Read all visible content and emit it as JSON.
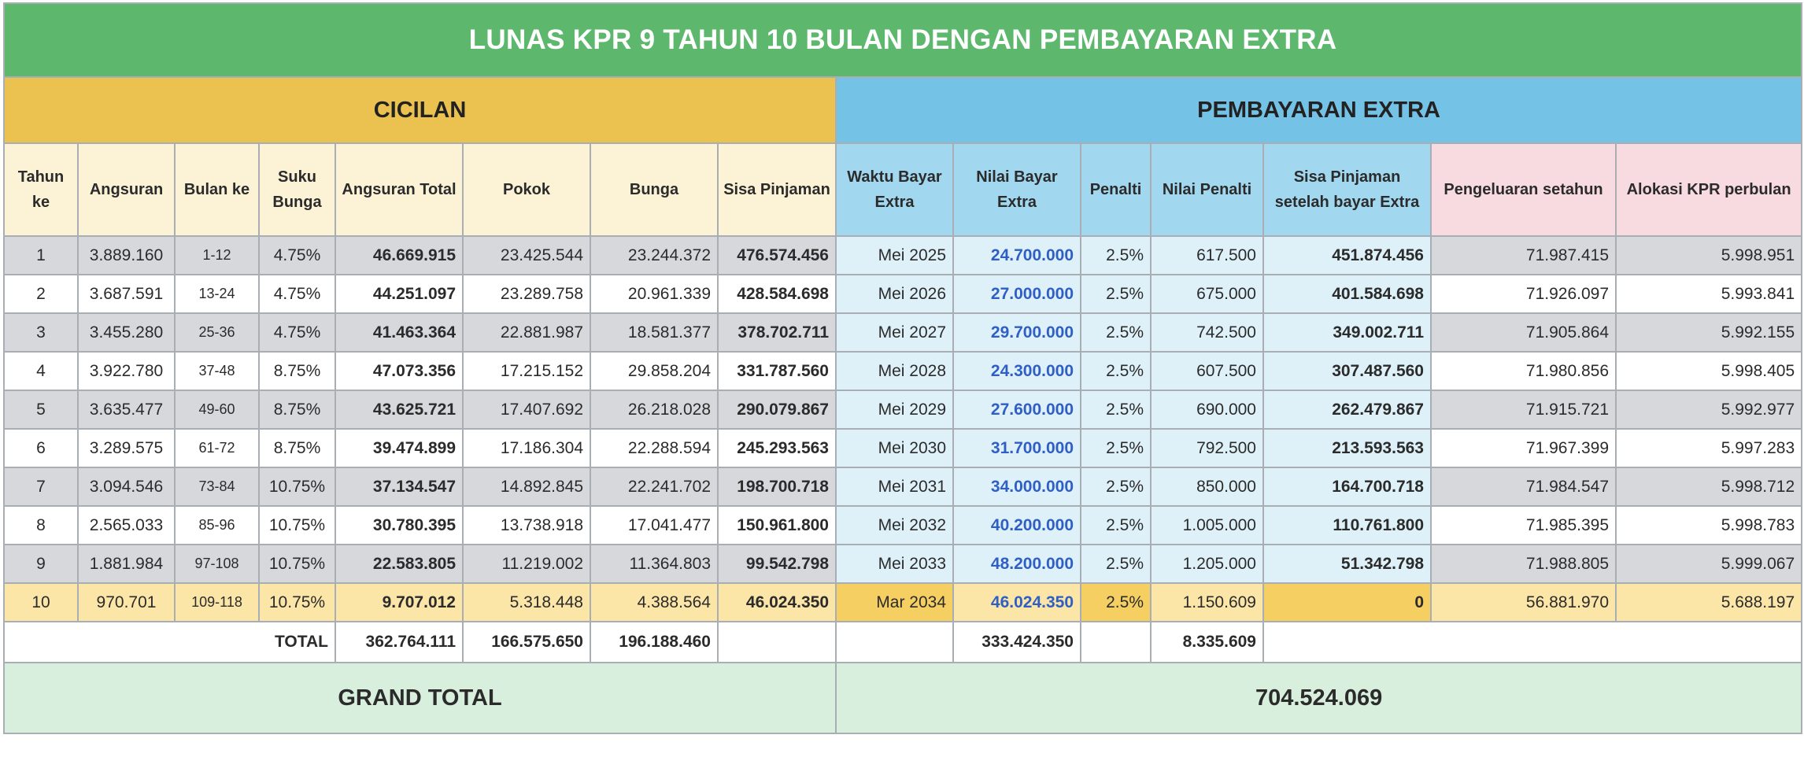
{
  "title": "LUNAS KPR 9 TAHUN 10 BULAN DENGAN PEMBAYARAN EXTRA",
  "sections": {
    "cicilan": "CICILAN",
    "extra": "PEMBAYARAN EXTRA"
  },
  "headers": {
    "tahun": "Tahun ke",
    "angsuran": "Angsuran",
    "bulan": "Bulan ke",
    "suku": "Suku Bunga",
    "angsuran_total": "Angsuran Total",
    "pokok": "Pokok",
    "bunga": "Bunga",
    "sisa": "Sisa Pinjaman",
    "waktu": "Waktu Bayar Extra",
    "nilai_bayar": "Nilai Bayar Extra",
    "penalti": "Penalti",
    "nilai_penalti": "Nilai Penalti",
    "sisa_setelah": "Sisa Pinjaman setelah bayar Extra",
    "pengeluaran": "Pengeluaran setahun",
    "alokasi": "Alokasi KPR perbulan"
  },
  "rows": [
    {
      "tahun": "1",
      "angsuran": "3.889.160",
      "bulan": "1-12",
      "suku": "4.75%",
      "total": "46.669.915",
      "pokok": "23.425.544",
      "bunga": "23.244.372",
      "sisa": "476.574.456",
      "waktu": "Mei 2025",
      "bayar": "24.700.000",
      "penalti": "2.5%",
      "nilai_penalti": "617.500",
      "sisa_setelah": "451.874.456",
      "pengeluaran": "71.987.415",
      "alokasi": "5.998.951"
    },
    {
      "tahun": "2",
      "angsuran": "3.687.591",
      "bulan": "13-24",
      "suku": "4.75%",
      "total": "44.251.097",
      "pokok": "23.289.758",
      "bunga": "20.961.339",
      "sisa": "428.584.698",
      "waktu": "Mei 2026",
      "bayar": "27.000.000",
      "penalti": "2.5%",
      "nilai_penalti": "675.000",
      "sisa_setelah": "401.584.698",
      "pengeluaran": "71.926.097",
      "alokasi": "5.993.841"
    },
    {
      "tahun": "3",
      "angsuran": "3.455.280",
      "bulan": "25-36",
      "suku": "4.75%",
      "total": "41.463.364",
      "pokok": "22.881.987",
      "bunga": "18.581.377",
      "sisa": "378.702.711",
      "waktu": "Mei 2027",
      "bayar": "29.700.000",
      "penalti": "2.5%",
      "nilai_penalti": "742.500",
      "sisa_setelah": "349.002.711",
      "pengeluaran": "71.905.864",
      "alokasi": "5.992.155"
    },
    {
      "tahun": "4",
      "angsuran": "3.922.780",
      "bulan": "37-48",
      "suku": "8.75%",
      "total": "47.073.356",
      "pokok": "17.215.152",
      "bunga": "29.858.204",
      "sisa": "331.787.560",
      "waktu": "Mei 2028",
      "bayar": "24.300.000",
      "penalti": "2.5%",
      "nilai_penalti": "607.500",
      "sisa_setelah": "307.487.560",
      "pengeluaran": "71.980.856",
      "alokasi": "5.998.405"
    },
    {
      "tahun": "5",
      "angsuran": "3.635.477",
      "bulan": "49-60",
      "suku": "8.75%",
      "total": "43.625.721",
      "pokok": "17.407.692",
      "bunga": "26.218.028",
      "sisa": "290.079.867",
      "waktu": "Mei 2029",
      "bayar": "27.600.000",
      "penalti": "2.5%",
      "nilai_penalti": "690.000",
      "sisa_setelah": "262.479.867",
      "pengeluaran": "71.915.721",
      "alokasi": "5.992.977"
    },
    {
      "tahun": "6",
      "angsuran": "3.289.575",
      "bulan": "61-72",
      "suku": "8.75%",
      "total": "39.474.899",
      "pokok": "17.186.304",
      "bunga": "22.288.594",
      "sisa": "245.293.563",
      "waktu": "Mei 2030",
      "bayar": "31.700.000",
      "penalti": "2.5%",
      "nilai_penalti": "792.500",
      "sisa_setelah": "213.593.563",
      "pengeluaran": "71.967.399",
      "alokasi": "5.997.283"
    },
    {
      "tahun": "7",
      "angsuran": "3.094.546",
      "bulan": "73-84",
      "suku": "10.75%",
      "total": "37.134.547",
      "pokok": "14.892.845",
      "bunga": "22.241.702",
      "sisa": "198.700.718",
      "waktu": "Mei 2031",
      "bayar": "34.000.000",
      "penalti": "2.5%",
      "nilai_penalti": "850.000",
      "sisa_setelah": "164.700.718",
      "pengeluaran": "71.984.547",
      "alokasi": "5.998.712"
    },
    {
      "tahun": "8",
      "angsuran": "2.565.033",
      "bulan": "85-96",
      "suku": "10.75%",
      "total": "30.780.395",
      "pokok": "13.738.918",
      "bunga": "17.041.477",
      "sisa": "150.961.800",
      "waktu": "Mei 2032",
      "bayar": "40.200.000",
      "penalti": "2.5%",
      "nilai_penalti": "1.005.000",
      "sisa_setelah": "110.761.800",
      "pengeluaran": "71.985.395",
      "alokasi": "5.998.783"
    },
    {
      "tahun": "9",
      "angsuran": "1.881.984",
      "bulan": "97-108",
      "suku": "10.75%",
      "total": "22.583.805",
      "pokok": "11.219.002",
      "bunga": "11.364.803",
      "sisa": "99.542.798",
      "waktu": "Mei 2033",
      "bayar": "48.200.000",
      "penalti": "2.5%",
      "nilai_penalti": "1.205.000",
      "sisa_setelah": "51.342.798",
      "pengeluaran": "71.988.805",
      "alokasi": "5.999.067"
    },
    {
      "tahun": "10",
      "angsuran": "970.701",
      "bulan": "109-118",
      "suku": "10.75%",
      "total": "9.707.012",
      "pokok": "5.318.448",
      "bunga": "4.388.564",
      "sisa": "46.024.350",
      "waktu": "Mar 2034",
      "bayar": "46.024.350",
      "penalti": "2.5%",
      "nilai_penalti": "1.150.609",
      "sisa_setelah": "0",
      "pengeluaran": "56.881.970",
      "alokasi": "5.688.197"
    }
  ],
  "totals": {
    "label": "TOTAL",
    "angsuran_total": "362.764.111",
    "pokok": "166.575.650",
    "bunga": "196.188.460",
    "bayar_extra": "333.424.350",
    "nilai_penalti": "8.335.609"
  },
  "grand": {
    "label": "GRAND TOTAL",
    "value": "704.524.069"
  },
  "colors": {
    "title_bg": "#5db86e",
    "cicilan_bg": "#ebc250",
    "extra_bg": "#74c2e6",
    "pengeluaran_bg": "#f7dbe0",
    "blue_text": "#2f5fc4",
    "grand_bg": "#d8efde"
  }
}
